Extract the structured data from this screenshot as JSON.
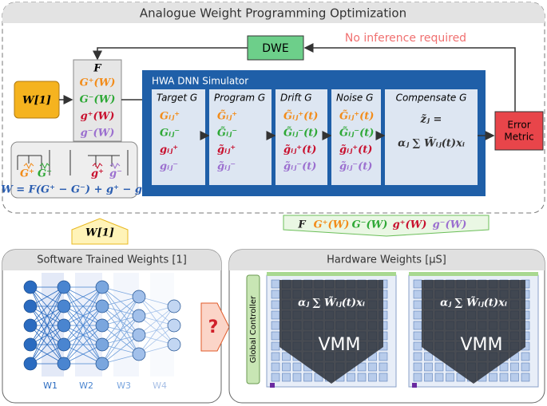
{
  "header": {
    "title": "Analogue Weight Programming Optimization"
  },
  "loop": {
    "dwe": "DWE",
    "note": "No inference required",
    "error_metric": [
      "Error",
      "Metric"
    ]
  },
  "input": {
    "weights": "W[1]"
  },
  "mapping": {
    "function": "F",
    "terms": [
      "G⁺(W)",
      "G⁻(W)",
      "g⁺(W)",
      "g⁻(W)"
    ]
  },
  "circuit": {
    "labels": [
      "G⁺",
      "G⁻",
      "g⁺",
      "g⁻"
    ],
    "formula": "W = F(G⁺ − G⁻) + g⁺ − g⁻"
  },
  "simulator": {
    "title": "HWA DNN Simulator",
    "stages": [
      {
        "title": "Target G",
        "terms": [
          "Gᵢⱼ⁺",
          "Gᵢⱼ⁻",
          "gᵢⱼ⁺",
          "gᵢⱼ⁻"
        ]
      },
      {
        "title": "Program G",
        "terms": [
          "G̃ᵢⱼ⁺",
          "G̃ᵢⱼ⁻",
          "g̃ᵢⱼ⁺",
          "g̃ᵢⱼ⁻"
        ]
      },
      {
        "title": "Drift G",
        "terms": [
          "G̃ᵢⱼ⁺(t)",
          "G̃ᵢⱼ⁻(t)",
          "g̃ᵢⱼ⁺(t)",
          "g̃ᵢⱼ⁻(t)"
        ]
      },
      {
        "title": "Noise G",
        "terms": [
          "G̃ᵢⱼ⁺(t)",
          "G̃ᵢⱼ⁻(t)",
          "g̃ᵢⱼ⁺(t)",
          "g̃ᵢⱼ⁻(t)"
        ]
      }
    ],
    "compensate": {
      "title": "Compensate G",
      "lines": [
        "z̃ⱼ =",
        "αⱼ ∑ W̃ᵢⱼ(t)xᵢ"
      ]
    }
  },
  "software": {
    "arrow_label": "W[1]",
    "title": "Software Trained Weights [1]",
    "layers": [
      "W1",
      "W2",
      "W3",
      "W4"
    ]
  },
  "question": "?",
  "hardware": {
    "banner": [
      "F",
      "G⁺(W)",
      "G⁻(W)",
      "g⁺(W)",
      "g⁻(W)"
    ],
    "title": "Hardware Weights [μS]",
    "controller": "Global Controller",
    "tiles": [
      {
        "formula": "αⱼ ∑ W̃ᵢⱼ(t)xᵢ",
        "label": "VMM"
      },
      {
        "formula": "αⱼ ∑ W̃ᵢⱼ(t)xᵢ",
        "label": "VMM"
      }
    ]
  }
}
